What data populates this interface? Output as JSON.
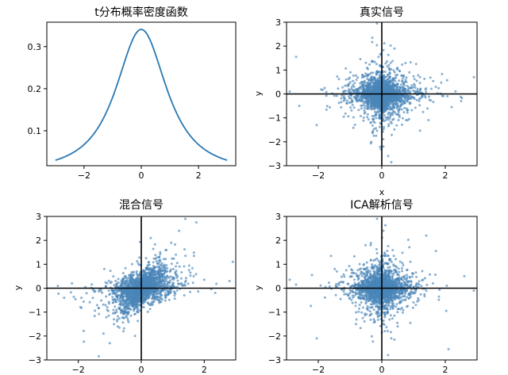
{
  "chart_data": [
    {
      "type": "line",
      "title": "t分布概率密度函数",
      "xlabel": "",
      "ylabel": "",
      "xlim": [
        -3.3,
        3.3
      ],
      "ylim": [
        0.017,
        0.358
      ],
      "xticks": [
        -2,
        0,
        2
      ],
      "yticks": [
        0.1,
        0.2,
        0.3
      ],
      "ytick_labels": [
        "0.1",
        "0.2",
        "0.3"
      ],
      "distribution": "Student t",
      "degrees_of_freedom": 1.5,
      "x_range": [
        -3,
        3
      ],
      "line_color": "#2a78b2"
    },
    {
      "type": "scatter",
      "title": "真实信号",
      "xlabel": "x",
      "ylabel": "y",
      "xlim": [
        -3,
        3
      ],
      "ylim": [
        -3,
        3
      ],
      "xticks": [
        -2,
        0,
        2
      ],
      "yticks": [
        -3,
        -2,
        -1,
        0,
        1,
        2,
        3
      ],
      "point_color": "#4a86b9",
      "points": [
        [
          -2.05,
          -1.3
        ],
        [
          -2.7,
          1.55
        ],
        [
          -2.6,
          -0.5
        ],
        [
          2.9,
          0.7
        ],
        [
          -0.3,
          2.35
        ],
        [
          0.2,
          -2.6
        ],
        [
          -0.15,
          2.95
        ],
        [
          0.3,
          -2.85
        ],
        [
          1.1,
          0.55
        ],
        [
          2.5,
          -0.3
        ],
        [
          -1.8,
          0.25
        ],
        [
          1.7,
          0.3
        ],
        [
          -0.25,
          -1.75
        ],
        [
          0.4,
          1.9
        ],
        [
          -1.1,
          -0.4
        ],
        [
          2.2,
          -0.55
        ],
        [
          -2.9,
          0.1
        ],
        [
          0.05,
          -2.2
        ],
        [
          1.5,
          -0.25
        ],
        [
          -0.5,
          1.3
        ]
      ]
    },
    {
      "type": "scatter",
      "title": "混合信号",
      "xlabel": "",
      "ylabel": "y",
      "xlim": [
        -3,
        3
      ],
      "ylim": [
        -3,
        3
      ],
      "xticks": [
        -2,
        0,
        2
      ],
      "yticks": [
        -3,
        -2,
        -1,
        0,
        1,
        2,
        3
      ],
      "point_color": "#4a86b9",
      "points": [
        [
          1.4,
          2.9
        ],
        [
          1.2,
          2.4
        ],
        [
          0.95,
          1.9
        ],
        [
          1.75,
          2.75
        ],
        [
          -1.0,
          -2.3
        ],
        [
          -1.35,
          -2.85
        ],
        [
          -0.75,
          -1.6
        ],
        [
          -1.2,
          -1.9
        ],
        [
          2.0,
          0.35
        ],
        [
          -1.9,
          -0.4
        ],
        [
          2.8,
          0.3
        ],
        [
          -2.65,
          0.1
        ],
        [
          0.6,
          1.5
        ],
        [
          -0.55,
          -1.25
        ],
        [
          1.1,
          1.4
        ],
        [
          -0.9,
          -1.05
        ],
        [
          2.35,
          -0.2
        ],
        [
          -2.2,
          0.2
        ],
        [
          0.3,
          2.1
        ],
        [
          -0.2,
          -2.0
        ]
      ]
    },
    {
      "type": "scatter",
      "title": "ICA解析信号",
      "xlabel": "",
      "ylabel": "y",
      "xlim": [
        -3,
        3
      ],
      "ylim": [
        -3,
        3
      ],
      "xticks": [
        -2,
        0,
        2
      ],
      "yticks": [
        -3,
        -2,
        -1,
        0,
        1,
        2,
        3
      ],
      "point_color": "#4a86b9",
      "points": [
        [
          -2.05,
          -2.1
        ],
        [
          2.1,
          -2.55
        ],
        [
          -0.15,
          2.9
        ],
        [
          0.2,
          -2.8
        ],
        [
          -2.7,
          0.15
        ],
        [
          2.6,
          0.5
        ],
        [
          -1.6,
          1.35
        ],
        [
          1.4,
          2.2
        ],
        [
          -0.35,
          1.8
        ],
        [
          0.5,
          -1.6
        ],
        [
          1.3,
          0.35
        ],
        [
          -1.3,
          -0.45
        ],
        [
          2.9,
          -0.1
        ],
        [
          -2.9,
          0.35
        ],
        [
          0.05,
          2.4
        ],
        [
          1.8,
          -0.35
        ],
        [
          -2.2,
          0.55
        ],
        [
          0.3,
          -2.1
        ],
        [
          -0.6,
          -1.25
        ],
        [
          0.9,
          1.1
        ]
      ]
    }
  ]
}
